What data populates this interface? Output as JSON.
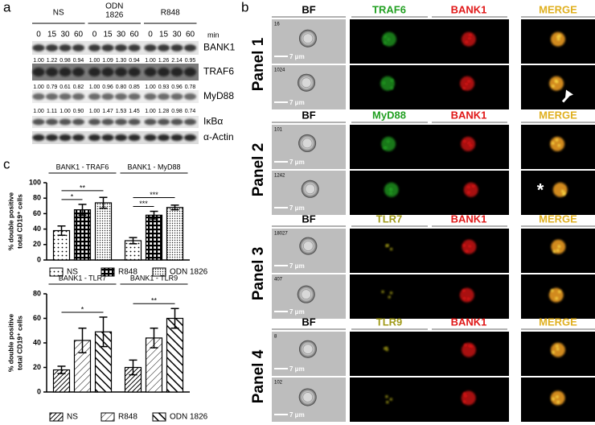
{
  "blot": {
    "label": "a",
    "groups": [
      {
        "name": [
          "NS"
        ],
        "times": [
          "0",
          "15",
          "30",
          "60"
        ]
      },
      {
        "name": [
          "ODN",
          "1826"
        ],
        "times": [
          "0",
          "15",
          "30",
          "60"
        ]
      },
      {
        "name": [
          "R848"
        ],
        "times": [
          "0",
          "15",
          "30",
          "60"
        ]
      }
    ],
    "unit": "min",
    "rows": [
      {
        "name": "BANK1",
        "quant": [
          "1.00",
          "1.22",
          "0.98",
          "0.94",
          "1.00",
          "1.09",
          "1.30",
          "0.94",
          "1.00",
          "1.26",
          "2.14",
          "0.95"
        ]
      },
      {
        "name": "TRAF6",
        "quant": [
          "1.00",
          "0.79",
          "0.61",
          "0.82",
          "1.00",
          "0.96",
          "0.80",
          "0.85",
          "1.00",
          "0.93",
          "0.96",
          "0.78"
        ]
      },
      {
        "name": "MyD88",
        "quant": [
          "1.00",
          "1.11",
          "1.00",
          "0.90",
          "1.00",
          "1.47",
          "1.53",
          "1.45",
          "1.00",
          "1.28",
          "0.98",
          "0.74"
        ]
      },
      {
        "name": "IκBα"
      },
      {
        "name": "α-Actin"
      }
    ]
  },
  "charts_label": "c",
  "chart_data": [
    {
      "type": "bar",
      "categories": [
        "BANK1 - TRAF6",
        "BANK1 - MyD88"
      ],
      "ylabel": [
        "% double positive",
        "total CD19⁺ cells"
      ],
      "ylim": [
        0,
        100
      ],
      "yticks": [
        0,
        20,
        40,
        60,
        80,
        100
      ],
      "legend": "bottom",
      "series": [
        {
          "name": "NS",
          "hatch": "dots",
          "values": [
            38,
            25
          ],
          "errors": [
            6,
            4
          ]
        },
        {
          "name": "R848",
          "hatch": "grid",
          "values": [
            65,
            58
          ],
          "errors": [
            7,
            5
          ]
        },
        {
          "name": "ODN 1826",
          "hatch": "stipple",
          "values": [
            74,
            68
          ],
          "errors": [
            7,
            3
          ]
        }
      ],
      "significance": [
        {
          "label": "*",
          "category": "BANK1 - TRAF6",
          "series": [
            "NS",
            "R848"
          ]
        },
        {
          "label": "**",
          "category": "BANK1 - TRAF6",
          "series": [
            "NS",
            "ODN 1826"
          ]
        },
        {
          "label": "***",
          "category": "BANK1 - MyD88",
          "series": [
            "NS",
            "R848"
          ]
        },
        {
          "label": "***",
          "category": "BANK1 - MyD88",
          "series": [
            "NS",
            "ODN 1826"
          ]
        }
      ]
    },
    {
      "type": "bar",
      "categories": [
        "BANK1 - TLR7",
        "BANK1 - TLR9"
      ],
      "ylabel": [
        "% double positive",
        "total CD19⁺ cells"
      ],
      "ylim": [
        0,
        80
      ],
      "yticks": [
        0,
        20,
        40,
        60,
        80
      ],
      "legend": "bottom",
      "series": [
        {
          "name": "NS",
          "hatch": "diag-dense",
          "values": [
            18,
            20
          ],
          "errors": [
            3,
            6
          ]
        },
        {
          "name": "R848",
          "hatch": "diag-sparse",
          "values": [
            42,
            44
          ],
          "errors": [
            10,
            8
          ]
        },
        {
          "name": "ODN 1826",
          "hatch": "diag-bold",
          "values": [
            49,
            60
          ],
          "errors": [
            12,
            8
          ]
        }
      ],
      "significance": [
        {
          "label": "*",
          "category": "BANK1 - TLR7",
          "series": [
            "NS",
            "ODN 1826"
          ]
        },
        {
          "label": "**",
          "category": "BANK1 - TLR9",
          "series": [
            "NS",
            "ODN 1826"
          ]
        }
      ]
    }
  ],
  "imaging": {
    "label": "b",
    "scale_bar": "7 μm",
    "panels": [
      {
        "name": "Panel 1",
        "headers": [
          "BF",
          "TRAF6",
          "BANK1",
          "MERGE"
        ],
        "header_colors": [
          "#000000",
          "#22a022",
          "#e01818",
          "#e0b020"
        ],
        "rows": [
          {
            "id": "16"
          },
          {
            "id": "1024"
          }
        ]
      },
      {
        "name": "Panel 2",
        "headers": [
          "BF",
          "MyD88",
          "BANK1",
          "MERGE"
        ],
        "header_colors": [
          "#000000",
          "#22a022",
          "#e01818",
          "#e0b020"
        ],
        "rows": [
          {
            "id": "101"
          },
          {
            "id": "1242",
            "annotation": "*"
          }
        ]
      },
      {
        "name": "Panel 3",
        "headers": [
          "BF",
          "TLR7",
          "BANK1",
          "MERGE"
        ],
        "header_colors": [
          "#000000",
          "#a09a18",
          "#e01818",
          "#e0b020"
        ],
        "rows": [
          {
            "id": "18027"
          },
          {
            "id": "407"
          }
        ]
      },
      {
        "name": "Panel 4",
        "headers": [
          "BF",
          "TLR9",
          "BANK1",
          "MERGE"
        ],
        "header_colors": [
          "#000000",
          "#a09a18",
          "#e01818",
          "#e0b020"
        ],
        "rows": [
          {
            "id": "8"
          },
          {
            "id": "102"
          }
        ]
      }
    ]
  }
}
